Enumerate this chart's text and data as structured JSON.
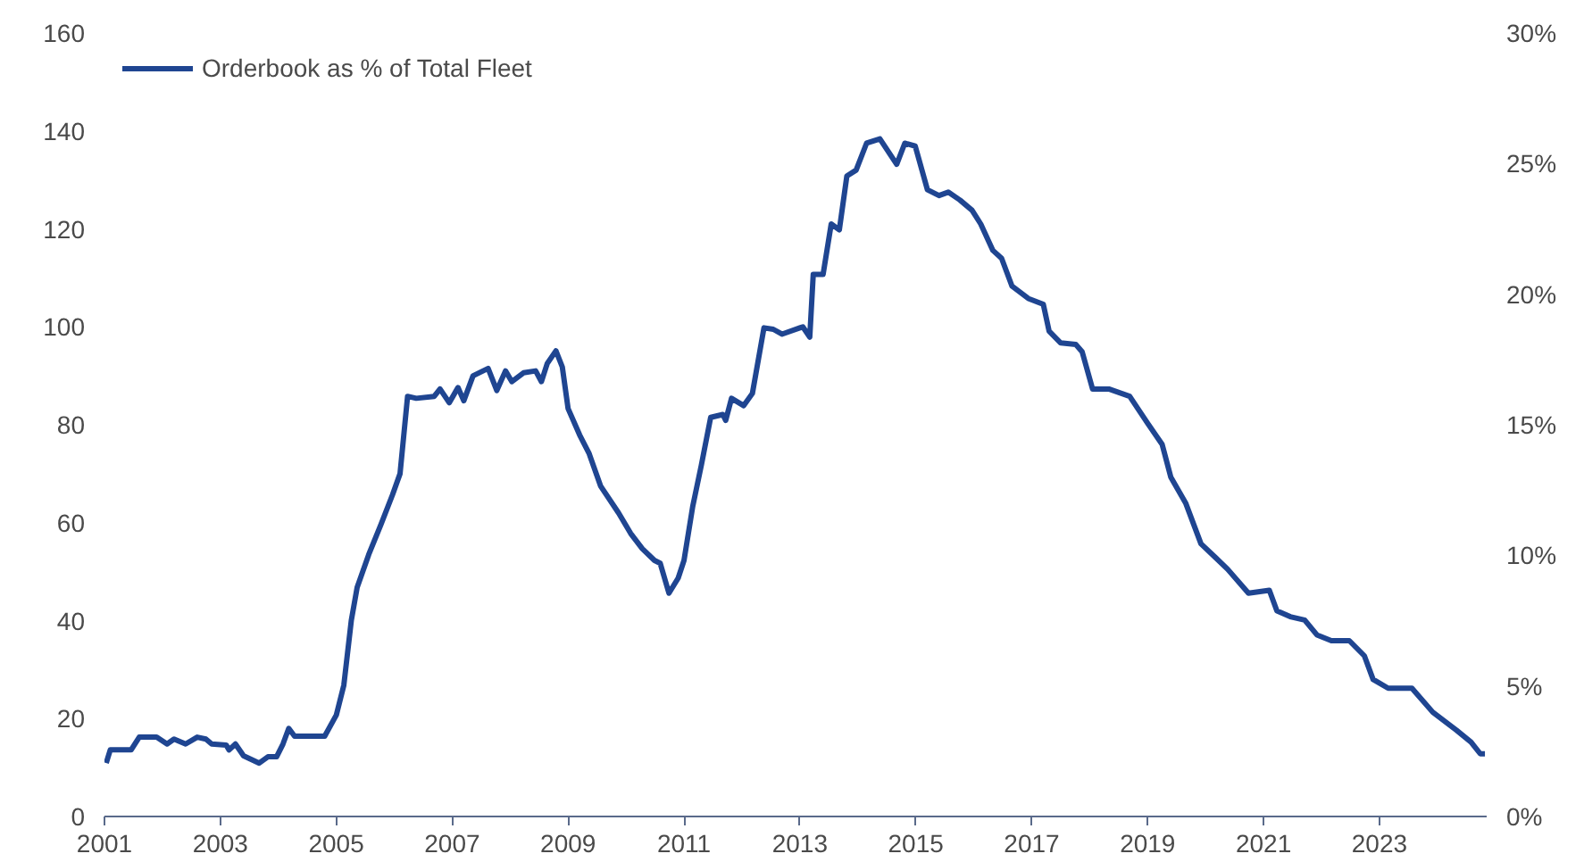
{
  "chart_data": {
    "type": "line",
    "xlim": [
      2001,
      2024.85
    ],
    "xticks": [
      2001,
      2003,
      2005,
      2007,
      2009,
      2011,
      2013,
      2015,
      2017,
      2019,
      2021,
      2023
    ],
    "ylim": [
      0,
      160
    ],
    "yticks": [
      0,
      20,
      40,
      60,
      80,
      100,
      120,
      140,
      160
    ],
    "y2lim": [
      0,
      30
    ],
    "y2ticks": [
      {
        "value": 0,
        "label": "0%"
      },
      {
        "value": 5,
        "label": "5%"
      },
      {
        "value": 10,
        "label": "10%"
      },
      {
        "value": 15,
        "label": "15%"
      },
      {
        "value": 20,
        "label": "20%"
      },
      {
        "value": 25,
        "label": "25%"
      },
      {
        "value": 30,
        "label": "30%"
      }
    ],
    "grid": false,
    "legend": "top left",
    "series": [
      {
        "name": "Orderbook as % of Total Fleet",
        "color": "#1f4591",
        "x": [
          2001.03,
          2001.1,
          2001.46,
          2001.6,
          2001.9,
          2002.08,
          2002.2,
          2002.4,
          2002.6,
          2002.75,
          2002.85,
          2003.1,
          2003.15,
          2003.26,
          2003.4,
          2003.67,
          2003.82,
          2003.97,
          2004.08,
          2004.18,
          2004.28,
          2004.8,
          2005.0,
          2005.13,
          2005.26,
          2005.36,
          2005.56,
          2005.77,
          2005.97,
          2006.1,
          2006.23,
          2006.38,
          2006.69,
          2006.79,
          2006.95,
          2007.1,
          2007.2,
          2007.36,
          2007.62,
          2007.77,
          2007.92,
          2008.03,
          2008.23,
          2008.44,
          2008.54,
          2008.64,
          2008.79,
          2008.9,
          2009.0,
          2009.2,
          2009.36,
          2009.56,
          2009.87,
          2010.08,
          2010.28,
          2010.49,
          2010.59,
          2010.74,
          2010.9,
          2011.0,
          2011.15,
          2011.3,
          2011.46,
          2011.67,
          2011.72,
          2011.82,
          2012.03,
          2012.18,
          2012.38,
          2012.54,
          2012.69,
          2013.0,
          2013.05,
          2013.17,
          2013.23,
          2013.4,
          2013.54,
          2013.68,
          2013.81,
          2013.97,
          2014.15,
          2014.38,
          2014.67,
          2014.81,
          2014.99,
          2015.2,
          2015.4,
          2015.56,
          2015.76,
          2015.97,
          2016.12,
          2016.33,
          2016.48,
          2016.66,
          2016.94,
          2017.2,
          2017.3,
          2017.5,
          2017.76,
          2017.87,
          2018.05,
          2018.33,
          2018.69,
          2019.0,
          2019.25,
          2019.4,
          2019.66,
          2019.92,
          2020.17,
          2020.38,
          2020.74,
          2021.1,
          2021.23,
          2021.46,
          2021.71,
          2021.92,
          2022.17,
          2022.48,
          2022.74,
          2022.89,
          2023.15,
          2023.56,
          2023.92,
          2024.33,
          2024.58,
          2024.74,
          2024.82
        ],
        "values": [
          10.9,
          13.6,
          13.6,
          16.2,
          16.2,
          14.8,
          15.8,
          14.8,
          16.2,
          15.8,
          14.8,
          14.6,
          13.6,
          14.8,
          12.4,
          10.9,
          12.2,
          12.2,
          14.8,
          18.0,
          16.4,
          16.4,
          20.7,
          26.8,
          40.1,
          46.8,
          53.5,
          59.6,
          65.7,
          70.0,
          85.8,
          85.4,
          85.8,
          87.3,
          84.5,
          87.6,
          84.9,
          90.0,
          91.5,
          87.0,
          91.0,
          88.8,
          90.6,
          91.0,
          88.8,
          92.5,
          95.1,
          91.8,
          83.3,
          77.9,
          74.2,
          67.5,
          62.0,
          57.8,
          54.7,
          52.3,
          51.7,
          45.6,
          48.7,
          52.3,
          63.3,
          71.8,
          81.5,
          82.1,
          80.9,
          85.4,
          83.9,
          86.4,
          99.8,
          99.5,
          98.5,
          99.8,
          100.0,
          97.9,
          110.7,
          110.7,
          121.0,
          119.8,
          130.8,
          132.0,
          137.5,
          138.4,
          133.2,
          137.5,
          136.9,
          128.0,
          126.8,
          127.5,
          125.9,
          123.8,
          121.0,
          115.6,
          114.0,
          108.3,
          105.8,
          104.6,
          99.1,
          96.7,
          96.4,
          94.9,
          87.3,
          87.3,
          85.8,
          80.3,
          76.0,
          69.3,
          63.9,
          55.7,
          52.9,
          50.5,
          45.6,
          46.2,
          42.0,
          40.8,
          40.1,
          37.1,
          35.9,
          35.9,
          32.8,
          28.0,
          26.2,
          26.2,
          21.3,
          17.6,
          15.2,
          12.8,
          12.8
        ]
      }
    ]
  }
}
